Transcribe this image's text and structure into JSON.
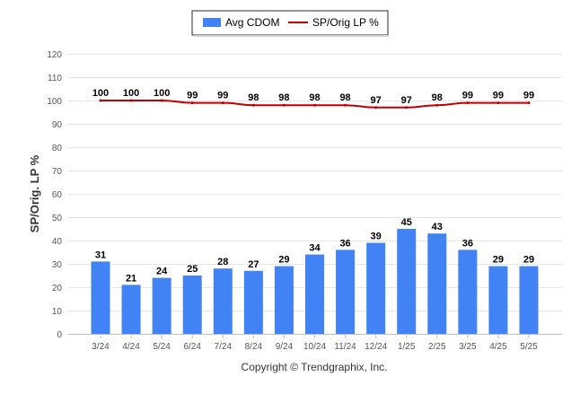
{
  "chart_data": {
    "type": "bar",
    "categories": [
      "3/24",
      "4/24",
      "5/24",
      "6/24",
      "7/24",
      "8/24",
      "9/24",
      "10/24",
      "11/24",
      "12/24",
      "1/25",
      "2/25",
      "3/25",
      "4/25",
      "5/25"
    ],
    "series": [
      {
        "name": "Avg CDOM",
        "type": "bar",
        "color": "#4183f4",
        "values": [
          31,
          21,
          24,
          25,
          28,
          27,
          29,
          34,
          36,
          39,
          45,
          43,
          36,
          29,
          29
        ]
      },
      {
        "name": "SP/Orig LP %",
        "type": "line",
        "color": "#c00000",
        "values": [
          100,
          100,
          100,
          99,
          99,
          98,
          98,
          98,
          98,
          97,
          97,
          98,
          99,
          99,
          99
        ]
      }
    ],
    "ylabel": "SP/Orig. LP %",
    "ylim": [
      0,
      120
    ],
    "yticks": [
      0,
      10,
      20,
      30,
      40,
      50,
      60,
      70,
      80,
      90,
      100,
      110,
      120
    ],
    "grid": true,
    "legend_position": "top-center"
  },
  "footer": {
    "copyright": "Copyright © Trendgraphix, Inc."
  }
}
